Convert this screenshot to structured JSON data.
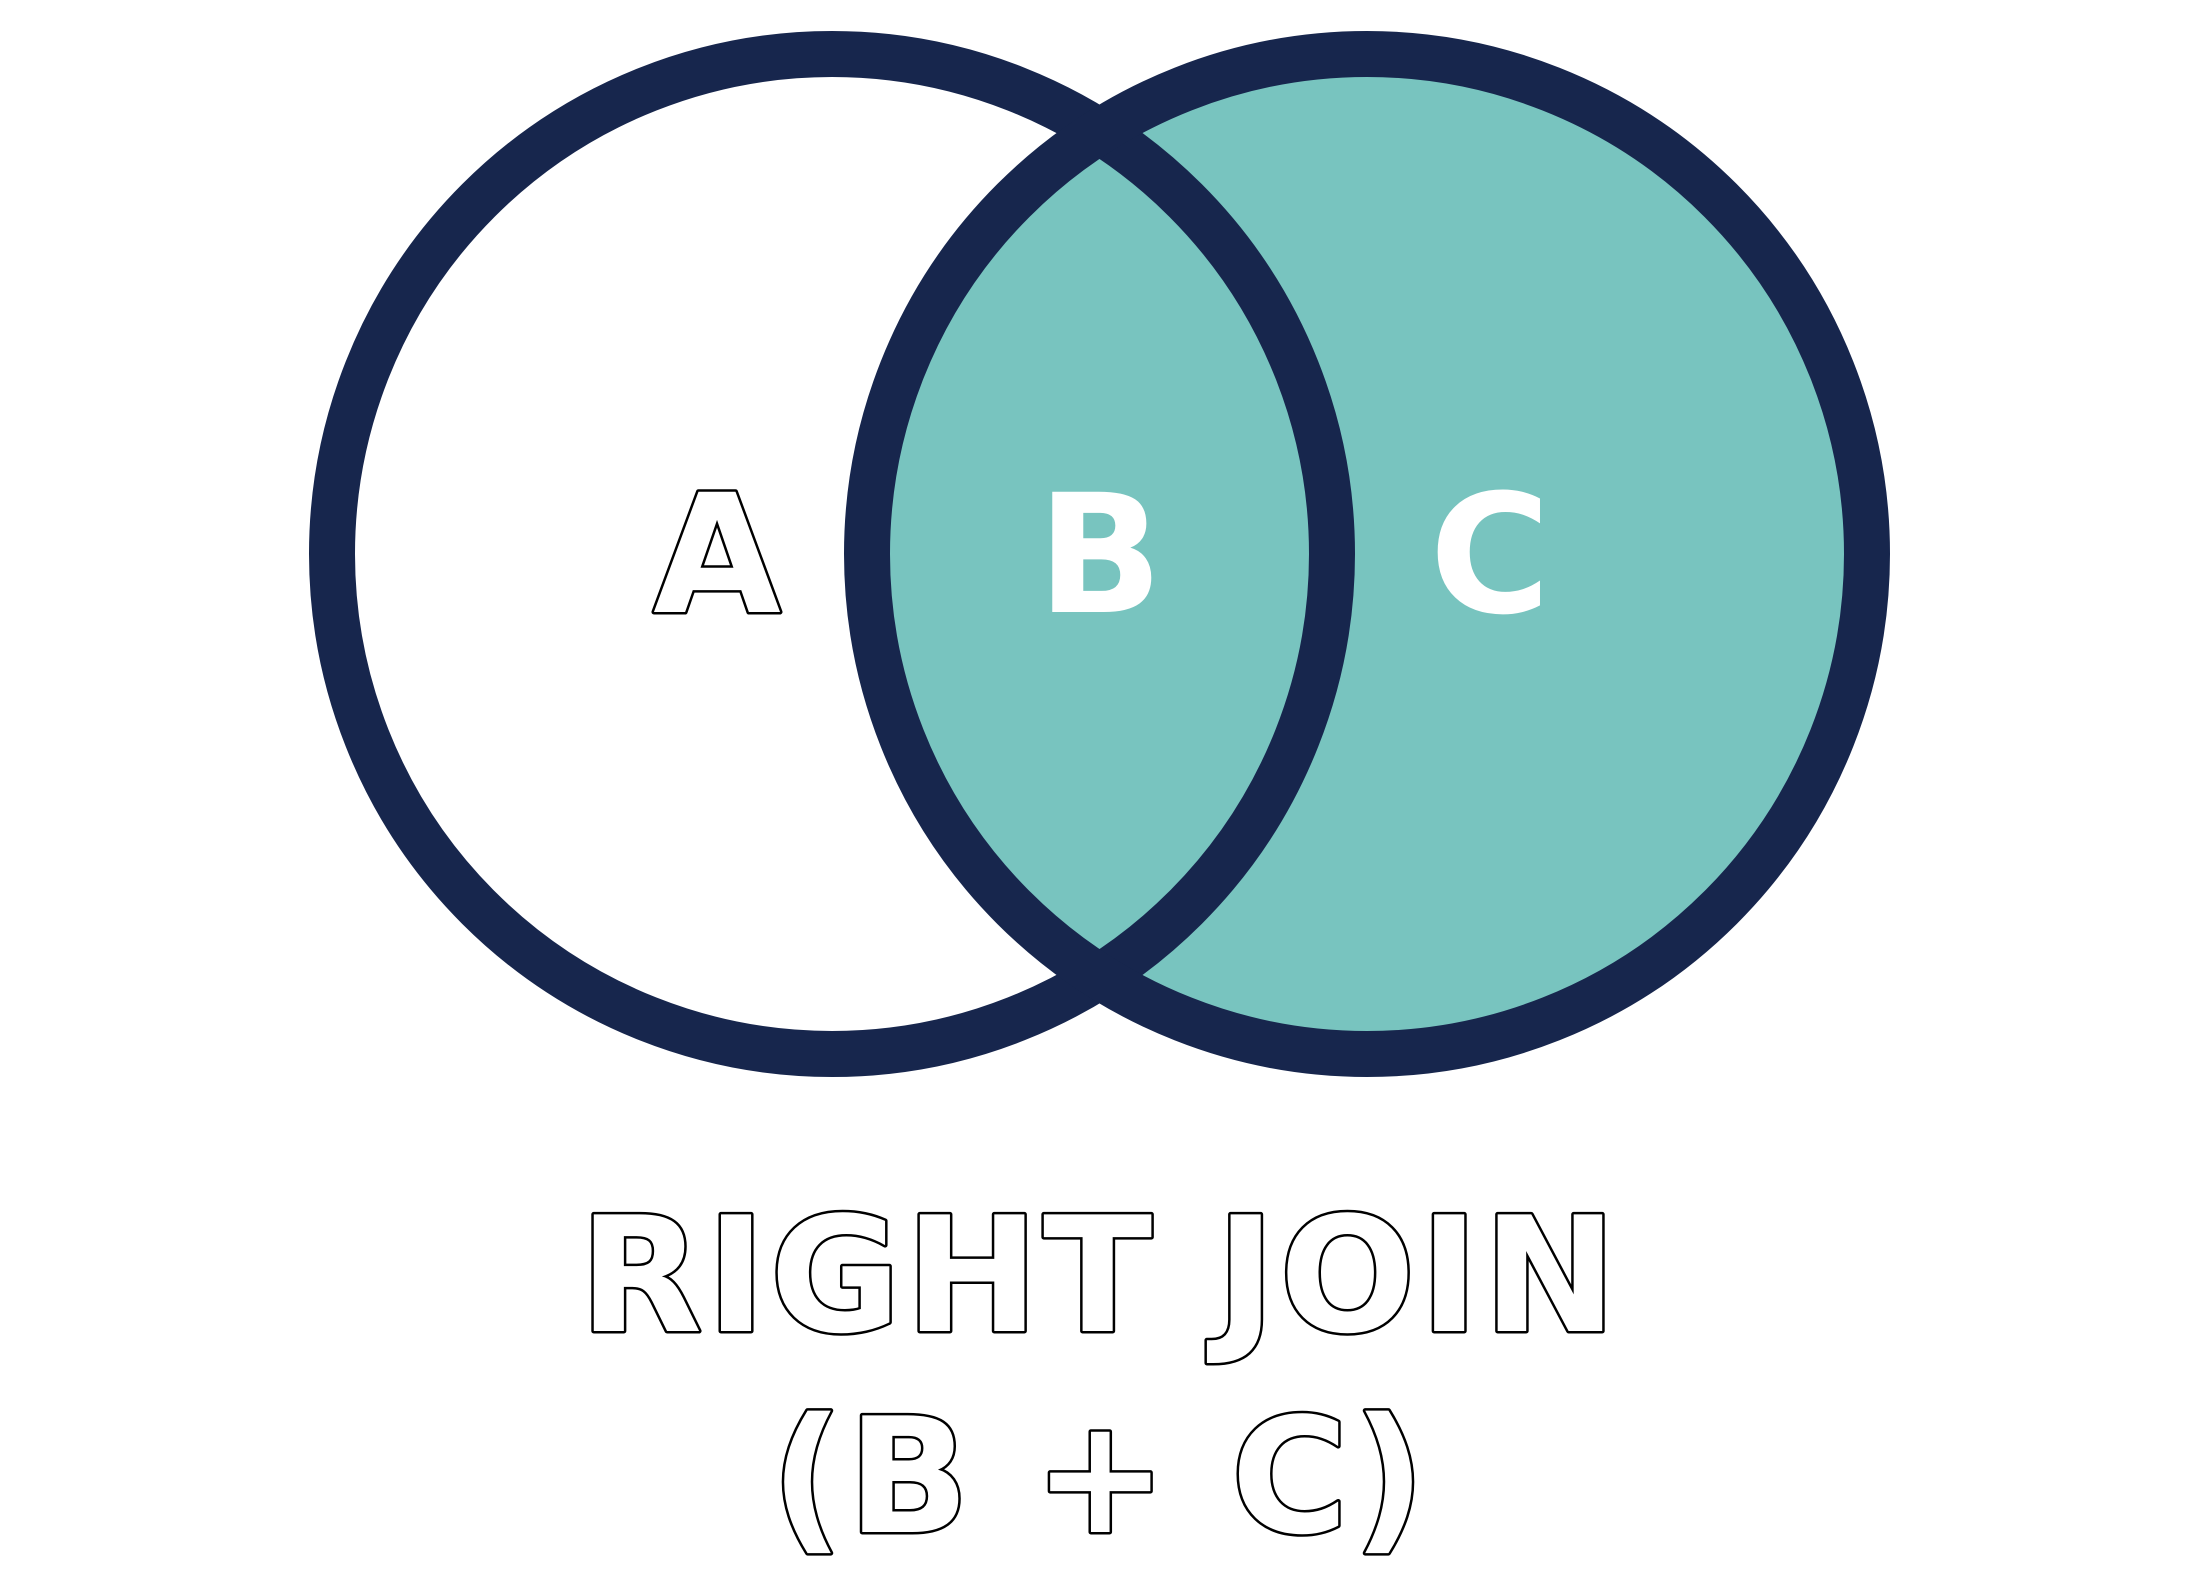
{
  "venn": {
    "sets": [
      {
        "label": "A",
        "filled": false
      },
      {
        "label": "C",
        "filled": true
      }
    ],
    "intersection": {
      "label": "B",
      "filled": true
    }
  },
  "caption": {
    "title": "RIGHT JOIN",
    "subtitle": "(B + C)"
  },
  "colors": {
    "outline": "#17264d",
    "fill": "#78c4bf",
    "background": "#ffffff",
    "text_stroke": "#000000"
  }
}
